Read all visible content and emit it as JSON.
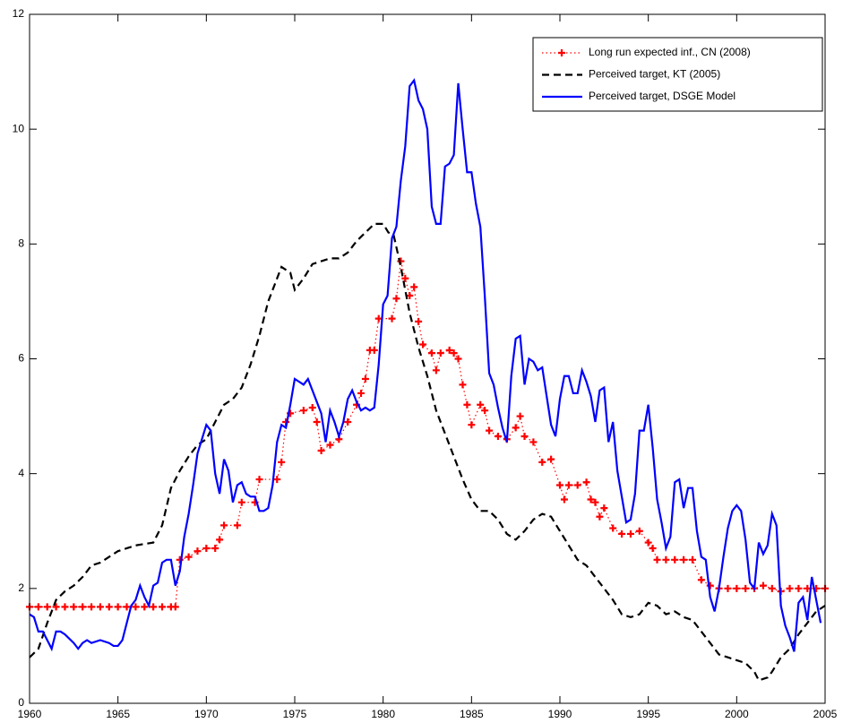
{
  "chart_data": {
    "type": "line",
    "xlim": [
      1960,
      2005
    ],
    "xticks": [
      1960,
      1965,
      1970,
      1975,
      1980,
      1985,
      1990,
      1995,
      2000,
      2005
    ],
    "ylim": [
      0,
      12
    ],
    "yticks": [
      0,
      2,
      4,
      6,
      8,
      10,
      12
    ],
    "grid": false,
    "legend": "upper right",
    "series": [
      {
        "name": "Long run expected inf., CN (2008)",
        "color": "#ff0000",
        "line_style": "dotted",
        "marker": "+",
        "x": [
          1960,
          1960.5,
          1961,
          1961.5,
          1962,
          1962.5,
          1963,
          1963.5,
          1964,
          1964.5,
          1965,
          1965.5,
          1966,
          1966.5,
          1967,
          1967.5,
          1968,
          1968.25,
          1968.5,
          1969,
          1969.5,
          1970,
          1970.5,
          1970.75,
          1971,
          1971.75,
          1972,
          1972.75,
          1973,
          1974,
          1974.25,
          1974.5,
          1974.75,
          1975.5,
          1976,
          1976.25,
          1976.5,
          1977,
          1977.5,
          1978,
          1978.5,
          1978.75,
          1979,
          1979.25,
          1979.5,
          1979.75,
          1980.5,
          1980.75,
          1981,
          1981.25,
          1981.5,
          1981.75,
          1982,
          1982.25,
          1982.75,
          1983,
          1983.25,
          1983.75,
          1984,
          1984.25,
          1984.5,
          1984.75,
          1985,
          1985.5,
          1985.75,
          1986,
          1986.5,
          1987,
          1987.5,
          1987.75,
          1988,
          1988.5,
          1989,
          1989.5,
          1990,
          1990.25,
          1990.5,
          1991,
          1991.5,
          1991.75,
          1992,
          1992.25,
          1992.5,
          1993,
          1993.5,
          1994,
          1994.5,
          1995,
          1995.25,
          1995.5,
          1996,
          1996.5,
          1997,
          1997.5,
          1998,
          1998.5,
          1999,
          1999.5,
          2000,
          2000.5,
          2001,
          2001.5,
          2002,
          2002.5,
          2003,
          2003.5,
          2004,
          2004.5,
          2005
        ],
        "values": [
          1.68,
          1.68,
          1.68,
          1.68,
          1.68,
          1.68,
          1.68,
          1.68,
          1.68,
          1.68,
          1.68,
          1.68,
          1.68,
          1.68,
          1.68,
          1.68,
          1.68,
          1.68,
          2.5,
          2.55,
          2.65,
          2.7,
          2.7,
          2.85,
          3.1,
          3.1,
          3.5,
          3.5,
          3.9,
          3.9,
          4.2,
          4.9,
          5.05,
          5.1,
          5.15,
          4.9,
          4.4,
          4.5,
          4.6,
          4.9,
          5.2,
          5.4,
          5.65,
          6.15,
          6.15,
          6.7,
          6.7,
          7.05,
          7.7,
          7.4,
          7.1,
          7.25,
          6.65,
          6.25,
          6.1,
          5.8,
          6.1,
          6.15,
          6.1,
          6.0,
          5.55,
          5.2,
          4.85,
          5.2,
          5.1,
          4.75,
          4.65,
          4.6,
          4.8,
          5.0,
          4.65,
          4.55,
          4.2,
          4.25,
          3.8,
          3.55,
          3.8,
          3.8,
          3.85,
          3.55,
          3.5,
          3.25,
          3.4,
          3.05,
          2.95,
          2.95,
          3.0,
          2.8,
          2.7,
          2.5,
          2.5,
          2.5,
          2.5,
          2.5,
          2.15,
          2.05,
          2.0,
          2.0,
          2.0,
          2.0,
          2.0,
          2.05,
          2.0,
          1.95,
          2.0,
          2.0,
          2.0,
          2.0,
          2.0
        ]
      },
      {
        "name": "Perceived target, KT (2005)",
        "color": "#000000",
        "line_style": "dashed",
        "x": [
          1960,
          1960.5,
          1961,
          1961.5,
          1962,
          1962.5,
          1963,
          1963.5,
          1964,
          1964.5,
          1965,
          1965.5,
          1966,
          1967,
          1967.5,
          1968,
          1968.5,
          1969,
          1969.5,
          1970,
          1970.5,
          1971,
          1971.5,
          1972,
          1972.5,
          1973,
          1973.5,
          1974,
          1974.25,
          1974.75,
          1975,
          1975.5,
          1976,
          1976.5,
          1977,
          1977.5,
          1978,
          1978.5,
          1979,
          1979.5,
          1980,
          1980.3,
          1980.6,
          1981,
          1981.5,
          1982,
          1982.5,
          1983,
          1983.5,
          1984,
          1984.5,
          1985,
          1985.5,
          1986,
          1986.5,
          1987,
          1987.5,
          1988,
          1988.5,
          1989,
          1989.5,
          1990,
          1990.5,
          1991,
          1991.5,
          1992,
          1992.5,
          1993,
          1993.5,
          1994,
          1994.5,
          1995,
          1995.5,
          1996,
          1996.5,
          1997,
          1997.5,
          1998,
          1998.5,
          1999,
          1999.5,
          2000,
          2000.5,
          2001,
          2001.25,
          2001.75,
          2002,
          2002.5,
          2003,
          2003.5,
          2004,
          2004.5,
          2005
        ],
        "values": [
          0.8,
          0.95,
          1.4,
          1.8,
          1.95,
          2.05,
          2.2,
          2.4,
          2.45,
          2.55,
          2.65,
          2.7,
          2.75,
          2.8,
          3.1,
          3.75,
          4.05,
          4.3,
          4.5,
          4.6,
          4.9,
          5.2,
          5.3,
          5.5,
          5.9,
          6.4,
          7.0,
          7.4,
          7.6,
          7.5,
          7.2,
          7.4,
          7.65,
          7.7,
          7.75,
          7.75,
          7.85,
          8.05,
          8.2,
          8.35,
          8.35,
          8.2,
          8.15,
          7.6,
          6.8,
          6.2,
          5.7,
          5.1,
          4.7,
          4.3,
          3.9,
          3.55,
          3.35,
          3.35,
          3.2,
          2.95,
          2.85,
          3.0,
          3.2,
          3.3,
          3.25,
          3.0,
          2.75,
          2.5,
          2.4,
          2.2,
          2.0,
          1.8,
          1.55,
          1.5,
          1.55,
          1.75,
          1.7,
          1.55,
          1.6,
          1.5,
          1.45,
          1.25,
          1.05,
          0.85,
          0.8,
          0.75,
          0.7,
          0.55,
          0.4,
          0.45,
          0.55,
          0.8,
          0.95,
          1.2,
          1.4,
          1.6,
          1.7
        ]
      },
      {
        "name": "Perceived target, DSGE Model",
        "color": "#0000ff",
        "line_style": "solid",
        "x": [
          1960,
          1960.25,
          1960.5,
          1960.75,
          1961,
          1961.25,
          1961.5,
          1961.75,
          1962,
          1962.5,
          1962.75,
          1963,
          1963.25,
          1963.5,
          1964,
          1964.5,
          1964.75,
          1965,
          1965.25,
          1965.5,
          1965.75,
          1966,
          1966.25,
          1966.5,
          1966.75,
          1967,
          1967.25,
          1967.5,
          1967.75,
          1968,
          1968.25,
          1968.5,
          1968.75,
          1969,
          1969.25,
          1969.5,
          1969.75,
          1970,
          1970.25,
          1970.5,
          1970.75,
          1971,
          1971.25,
          1971.5,
          1971.75,
          1972,
          1972.25,
          1972.5,
          1972.75,
          1973,
          1973.25,
          1973.5,
          1973.75,
          1974,
          1974.25,
          1974.5,
          1974.75,
          1975,
          1975.25,
          1975.5,
          1975.75,
          1976,
          1976.25,
          1976.5,
          1976.75,
          1977,
          1977.25,
          1977.5,
          1977.75,
          1978,
          1978.25,
          1978.5,
          1978.75,
          1979,
          1979.25,
          1979.5,
          1979.75,
          1980,
          1980.25,
          1980.5,
          1980.75,
          1981,
          1981.25,
          1981.5,
          1981.75,
          1982,
          1982.25,
          1982.5,
          1982.75,
          1983,
          1983.25,
          1983.5,
          1983.75,
          1984,
          1984.25,
          1984.5,
          1984.75,
          1985,
          1985.25,
          1985.5,
          1985.75,
          1986,
          1986.25,
          1986.5,
          1986.75,
          1987,
          1987.25,
          1987.5,
          1987.75,
          1988,
          1988.25,
          1988.5,
          1988.75,
          1989,
          1989.25,
          1989.5,
          1989.75,
          1990,
          1990.25,
          1990.5,
          1990.75,
          1991,
          1991.25,
          1991.5,
          1991.75,
          1992,
          1992.25,
          1992.5,
          1992.75,
          1993,
          1993.25,
          1993.5,
          1993.75,
          1994,
          1994.25,
          1994.5,
          1994.75,
          1995,
          1995.25,
          1995.5,
          1995.75,
          1996,
          1996.25,
          1996.5,
          1996.75,
          1997,
          1997.25,
          1997.5,
          1997.75,
          1998,
          1998.25,
          1998.5,
          1998.75,
          1999,
          1999.25,
          1999.5,
          1999.75,
          2000,
          2000.25,
          2000.5,
          2000.75,
          2001,
          2001.25,
          2001.5,
          2001.75,
          2002,
          2002.25,
          2002.5,
          2002.75,
          2003,
          2003.25,
          2003.5,
          2003.75,
          2004,
          2004.25,
          2004.5,
          2004.75
        ],
        "values": [
          1.55,
          1.5,
          1.25,
          1.25,
          1.1,
          0.95,
          1.25,
          1.25,
          1.2,
          1.05,
          0.95,
          1.05,
          1.1,
          1.05,
          1.1,
          1.05,
          1.0,
          1.0,
          1.1,
          1.4,
          1.7,
          1.8,
          2.05,
          1.85,
          1.7,
          2.05,
          2.1,
          2.45,
          2.5,
          2.5,
          2.05,
          2.3,
          2.9,
          3.3,
          3.8,
          4.35,
          4.6,
          4.85,
          4.75,
          4.0,
          3.65,
          4.25,
          4.05,
          3.5,
          3.8,
          3.85,
          3.65,
          3.6,
          3.6,
          3.35,
          3.35,
          3.4,
          3.8,
          4.55,
          4.85,
          4.8,
          5.2,
          5.65,
          5.6,
          5.55,
          5.65,
          5.45,
          5.25,
          5.05,
          4.55,
          5.1,
          4.9,
          4.65,
          4.9,
          5.3,
          5.45,
          5.25,
          5.1,
          5.15,
          5.1,
          5.15,
          5.9,
          6.95,
          7.1,
          8.1,
          8.3,
          9.1,
          9.7,
          10.75,
          10.85,
          10.5,
          10.35,
          10.0,
          8.65,
          8.35,
          8.35,
          9.35,
          9.4,
          9.55,
          10.8,
          10.0,
          9.25,
          9.25,
          8.7,
          8.3,
          7.1,
          5.75,
          5.55,
          5.15,
          4.8,
          4.55,
          5.7,
          6.35,
          6.4,
          5.55,
          6.0,
          5.95,
          5.8,
          5.85,
          5.35,
          4.85,
          4.65,
          5.3,
          5.7,
          5.7,
          5.4,
          5.4,
          5.8,
          5.6,
          5.35,
          4.9,
          5.45,
          5.5,
          4.55,
          4.9,
          4.05,
          3.6,
          3.15,
          3.2,
          3.65,
          4.75,
          4.75,
          5.2,
          4.45,
          3.55,
          3.15,
          2.7,
          2.9,
          3.85,
          3.9,
          3.4,
          3.75,
          3.75,
          3.0,
          2.55,
          2.5,
          1.85,
          1.6,
          2.0,
          2.55,
          3.05,
          3.35,
          3.45,
          3.35,
          2.85,
          2.1,
          2.0,
          2.8,
          2.6,
          2.75,
          3.3,
          3.1,
          1.7,
          1.35,
          1.15,
          0.9,
          1.75,
          1.85,
          1.45,
          2.2,
          1.8,
          1.4
        ]
      }
    ]
  }
}
